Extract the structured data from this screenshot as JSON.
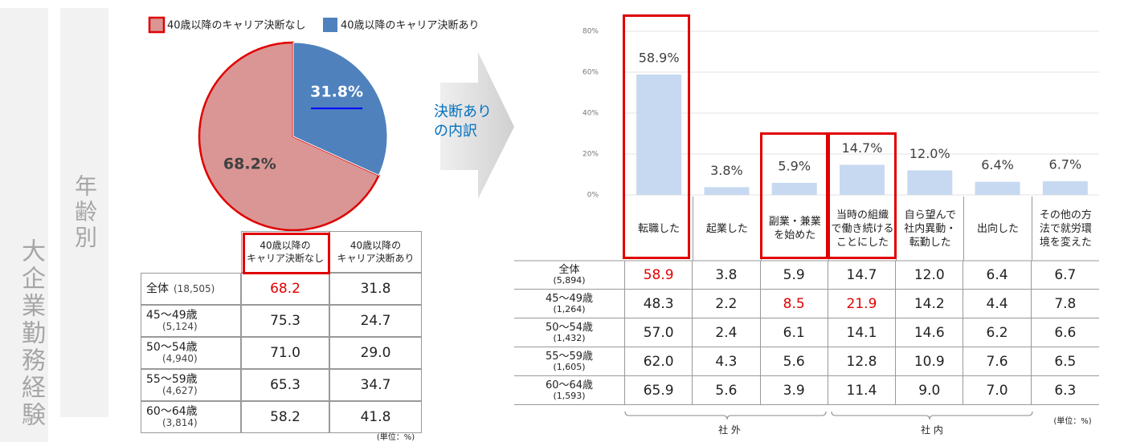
{
  "side_label": "大企業勤務経験",
  "age_label": "年齢別",
  "chart_data": [
    {
      "type": "pie",
      "categories": [
        "40歳以降のキャリア決断なし",
        "40歳以降のキャリア決断あり"
      ],
      "values": [
        68.2,
        31.8
      ],
      "value_labels": [
        "68.2%",
        "31.8%"
      ],
      "colors": [
        "#d99694",
        "#4f81bd"
      ]
    },
    {
      "type": "bar",
      "categories": [
        "転職した",
        "起業した",
        "副業・兼業\nを始めた",
        "当時の組織\nで働き続ける\nことにした",
        "自ら望んで\n社内異動・\n転勤した",
        "出向した",
        "その他の方\n法で就労環\n境を変えた"
      ],
      "values": [
        58.9,
        3.8,
        5.9,
        14.7,
        12.0,
        6.4,
        6.7
      ],
      "value_labels": [
        "58.9%",
        "3.8%",
        "5.9%",
        "14.7%",
        "12.0%",
        "6.4%",
        "6.7%"
      ],
      "color": "#c6d9f1",
      "ylim": [
        0,
        80
      ],
      "yticks": [
        {
          "value": 0,
          "label": "0%"
        },
        {
          "value": 20,
          "label": "20%"
        },
        {
          "value": 40,
          "label": "40%"
        },
        {
          "value": 60,
          "label": "60%"
        },
        {
          "value": 80,
          "label": "80%"
        }
      ],
      "grid": true
    }
  ],
  "arrow_text": "決断あり\nの内訳",
  "left_table": {
    "header": [
      "40歳以降の\nキャリア決断なし",
      "40歳以降の\nキャリア決断あり"
    ],
    "rows": [
      {
        "label": "全体",
        "n": "(18,505)",
        "values": [
          "68.2",
          "31.8"
        ]
      },
      {
        "label": "45～49歳",
        "n": "(5,124)",
        "values": [
          "75.3",
          "24.7"
        ]
      },
      {
        "label": "50～54歳",
        "n": "(4,940)",
        "values": [
          "71.0",
          "29.0"
        ]
      },
      {
        "label": "55～59歳",
        "n": "(4,627)",
        "values": [
          "65.3",
          "34.7"
        ]
      },
      {
        "label": "60～64歳",
        "n": "(3,814)",
        "values": [
          "58.2",
          "41.8"
        ]
      }
    ],
    "highlight": [
      [
        0,
        0
      ]
    ],
    "unit": "(単位：%)"
  },
  "right_table": {
    "rows": [
      {
        "label": "全体",
        "n": "(5,894)",
        "values": [
          "58.9",
          "3.8",
          "5.9",
          "14.7",
          "12.0",
          "6.4",
          "6.7"
        ]
      },
      {
        "label": "45～49歳",
        "n": "(1,264)",
        "values": [
          "48.3",
          "2.2",
          "8.5",
          "21.9",
          "14.2",
          "4.4",
          "7.8"
        ]
      },
      {
        "label": "50～54歳",
        "n": "(1,432)",
        "values": [
          "57.0",
          "2.4",
          "6.1",
          "14.1",
          "14.6",
          "6.2",
          "6.6"
        ]
      },
      {
        "label": "55～59歳",
        "n": "(1,605)",
        "values": [
          "62.0",
          "4.3",
          "5.6",
          "12.8",
          "10.9",
          "7.6",
          "6.5"
        ]
      },
      {
        "label": "60～64歳",
        "n": "(1,593)",
        "values": [
          "65.9",
          "5.6",
          "3.9",
          "11.4",
          "9.0",
          "7.0",
          "6.3"
        ]
      }
    ],
    "highlight": [
      [
        0,
        0
      ],
      [
        1,
        2
      ],
      [
        1,
        3
      ]
    ],
    "groups": [
      "社 外",
      "社 内"
    ],
    "unit": "(単位：%)"
  }
}
